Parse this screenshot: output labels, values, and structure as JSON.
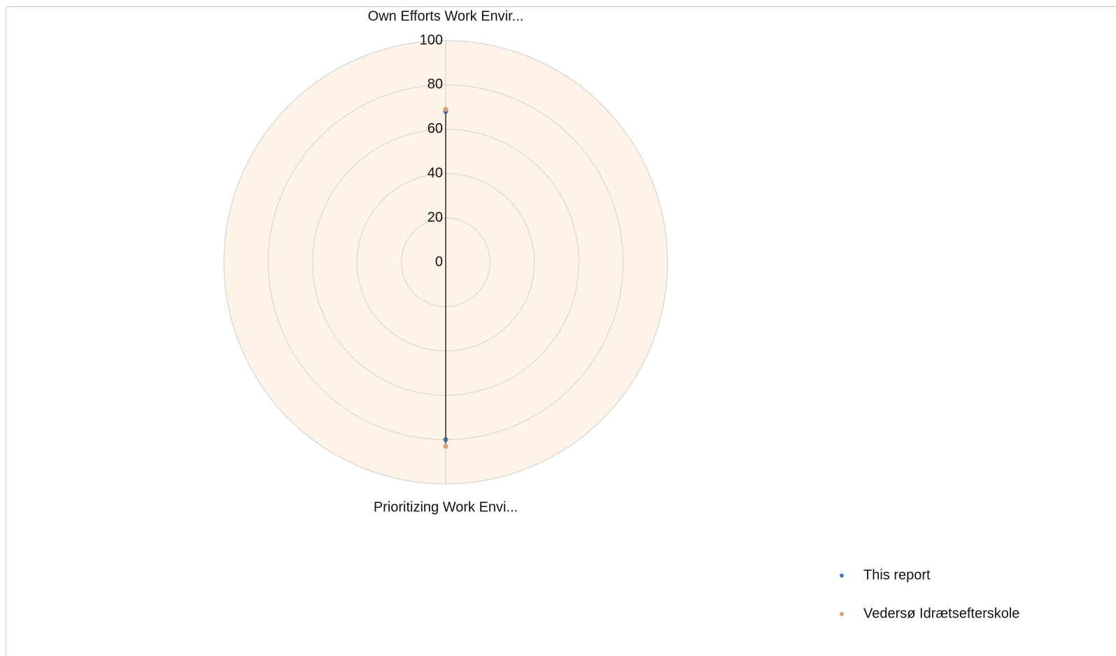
{
  "chart_data": {
    "type": "radar",
    "categories": [
      "Own Efforts Work Envir...",
      "Prioritizing Work Envi..."
    ],
    "series": [
      {
        "name": "This report",
        "color": "#4a7ebb",
        "values": [
          68,
          80
        ]
      },
      {
        "name": "Vedersø Idrætsefterskole",
        "color": "#d4a373",
        "values": [
          69,
          83
        ]
      }
    ],
    "ylim": [
      0,
      100
    ],
    "yticks": [
      0,
      20,
      40,
      60,
      80,
      100
    ],
    "grid": true,
    "legend": "lower right"
  }
}
